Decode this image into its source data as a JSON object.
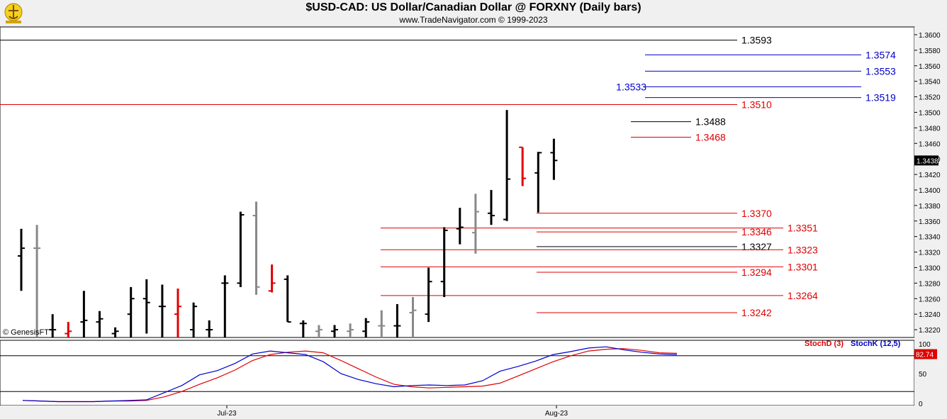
{
  "header": {
    "title": "$USD-CAD:  US Dollar/Canadian Dollar @ FORXNY  (Daily bars)",
    "subtitle": "www.TradeNavigator.com © 1999-2023"
  },
  "watermark": "© GenesisFT",
  "colors": {
    "bull_bar": "#000000",
    "bear_bar": "#e00000",
    "neutral_bar": "#888888",
    "up_bar": "#22cc22",
    "level_black": "#000000",
    "level_red": "#e00000",
    "level_blue": "#0000cc",
    "stoch_d": "#e00000",
    "stoch_k": "#0000cc"
  },
  "chart_data": [
    {
      "type": "ohlc",
      "title": "$USD-CAD:  US Dollar/Canadian Dollar @ FORXNY  (Daily bars)",
      "ylim": [
        1.321,
        1.361
      ],
      "y_ticks": [
        "1.3220",
        "1.3240",
        "1.3260",
        "1.3280",
        "1.3300",
        "1.3320",
        "1.3340",
        "1.3360",
        "1.3380",
        "1.3400",
        "1.3420",
        "1.3440",
        "1.3460",
        "1.3480",
        "1.3500",
        "1.3520",
        "1.3540",
        "1.3560",
        "1.3580",
        "1.3600"
      ],
      "x_labels": [
        "Jul-23",
        "Aug-23"
      ],
      "last_price": "1.3438",
      "bars": [
        {
          "o": 1.3315,
          "h": 1.335,
          "l": 1.327,
          "c": 1.3325,
          "color": "black"
        },
        {
          "o": 1.3325,
          "h": 1.3355,
          "l": 1.32,
          "c": 1.3325,
          "color": "gray"
        },
        {
          "o": 1.322,
          "h": 1.324,
          "l": 1.32,
          "c": 1.322,
          "color": "black"
        },
        {
          "o": 1.3215,
          "h": 1.323,
          "l": 1.32,
          "c": 1.3218,
          "color": "red"
        },
        {
          "o": 1.323,
          "h": 1.327,
          "l": 1.32,
          "c": 1.3232,
          "color": "black"
        },
        {
          "o": 1.323,
          "h": 1.3244,
          "l": 1.32,
          "c": 1.3234,
          "color": "black"
        },
        {
          "o": 1.3215,
          "h": 1.3223,
          "l": 1.32,
          "c": 1.3218,
          "color": "black"
        },
        {
          "o": 1.324,
          "h": 1.3275,
          "l": 1.321,
          "c": 1.326,
          "color": "black"
        },
        {
          "o": 1.326,
          "h": 1.3285,
          "l": 1.3215,
          "c": 1.3255,
          "color": "black"
        },
        {
          "o": 1.325,
          "h": 1.3278,
          "l": 1.321,
          "c": 1.325,
          "color": "black"
        },
        {
          "o": 1.324,
          "h": 1.3273,
          "l": 1.3205,
          "c": 1.325,
          "color": "red"
        },
        {
          "o": 1.322,
          "h": 1.3255,
          "l": 1.321,
          "c": 1.325,
          "color": "black"
        },
        {
          "o": 1.322,
          "h": 1.3232,
          "l": 1.321,
          "c": 1.322,
          "color": "black"
        },
        {
          "o": 1.328,
          "h": 1.329,
          "l": 1.321,
          "c": 1.328,
          "color": "black"
        },
        {
          "o": 1.328,
          "h": 1.3372,
          "l": 1.3275,
          "c": 1.3368,
          "color": "black"
        },
        {
          "o": 1.3367,
          "h": 1.3385,
          "l": 1.3265,
          "c": 1.3275,
          "color": "gray"
        },
        {
          "o": 1.327,
          "h": 1.3304,
          "l": 1.3268,
          "c": 1.328,
          "color": "red"
        },
        {
          "o": 1.3285,
          "h": 1.329,
          "l": 1.323,
          "c": 1.323,
          "color": "black"
        },
        {
          "o": 1.3228,
          "h": 1.3232,
          "l": 1.321,
          "c": 1.3228,
          "color": "black"
        },
        {
          "o": 1.3218,
          "h": 1.3226,
          "l": 1.321,
          "c": 1.322,
          "color": "gray"
        },
        {
          "o": 1.3218,
          "h": 1.3226,
          "l": 1.321,
          "c": 1.322,
          "color": "black"
        },
        {
          "o": 1.3218,
          "h": 1.3228,
          "l": 1.321,
          "c": 1.322,
          "color": "gray"
        },
        {
          "o": 1.3218,
          "h": 1.3235,
          "l": 1.321,
          "c": 1.323,
          "color": "black"
        },
        {
          "o": 1.3225,
          "h": 1.3245,
          "l": 1.321,
          "c": 1.3225,
          "color": "gray"
        },
        {
          "o": 1.3225,
          "h": 1.3253,
          "l": 1.321,
          "c": 1.3225,
          "color": "black"
        },
        {
          "o": 1.3242,
          "h": 1.3262,
          "l": 1.321,
          "c": 1.3245,
          "color": "gray"
        },
        {
          "o": 1.324,
          "h": 1.33,
          "l": 1.323,
          "c": 1.3282,
          "color": "black"
        },
        {
          "o": 1.3282,
          "h": 1.3352,
          "l": 1.3262,
          "c": 1.3348,
          "color": "black"
        },
        {
          "o": 1.335,
          "h": 1.3377,
          "l": 1.333,
          "c": 1.3352,
          "color": "black"
        },
        {
          "o": 1.3345,
          "h": 1.3395,
          "l": 1.3318,
          "c": 1.3372,
          "color": "gray"
        },
        {
          "o": 1.337,
          "h": 1.34,
          "l": 1.3355,
          "c": 1.3367,
          "color": "black"
        },
        {
          "o": 1.3362,
          "h": 1.3503,
          "l": 1.336,
          "c": 1.3414,
          "color": "black"
        },
        {
          "o": 1.3455,
          "h": 1.3455,
          "l": 1.3405,
          "c": 1.3415,
          "color": "red"
        },
        {
          "o": 1.3422,
          "h": 1.3449,
          "l": 1.3371,
          "c": 1.3448,
          "color": "black"
        },
        {
          "o": 1.3448,
          "h": 1.3466,
          "l": 1.3413,
          "c": 1.3438,
          "color": "black"
        }
      ],
      "levels": [
        {
          "value": "1.3593",
          "color": "black",
          "start": "left"
        },
        {
          "value": "1.3574",
          "color": "blue",
          "start": "right-group"
        },
        {
          "value": "1.3553",
          "color": "blue",
          "start": "right-group"
        },
        {
          "value": "1.3533",
          "color": "blue",
          "start": "right-group",
          "label_side": "left"
        },
        {
          "value": "1.3519",
          "color": "blue",
          "start": "right-group"
        },
        {
          "value": "1.3510",
          "color": "red",
          "start": "left"
        },
        {
          "value": "1.3488",
          "color": "black",
          "start": "peak"
        },
        {
          "value": "1.3468",
          "color": "red",
          "start": "peak"
        },
        {
          "value": "1.3370",
          "color": "red",
          "start": "mid"
        },
        {
          "value": "1.3351",
          "color": "red",
          "start": "left-mid"
        },
        {
          "value": "1.3346",
          "color": "red",
          "start": "mid"
        },
        {
          "value": "1.3327",
          "color": "black",
          "start": "mid"
        },
        {
          "value": "1.3323",
          "color": "red",
          "start": "left-mid"
        },
        {
          "value": "1.3301",
          "color": "red",
          "start": "left-mid"
        },
        {
          "value": "1.3294",
          "color": "red",
          "start": "mid"
        },
        {
          "value": "1.3264",
          "color": "red",
          "start": "left-mid"
        },
        {
          "value": "1.3242",
          "color": "red",
          "start": "mid"
        }
      ]
    },
    {
      "type": "line",
      "title": "",
      "ylim": [
        0,
        100
      ],
      "y_ticks": [
        "0",
        "50",
        "100"
      ],
      "reference_lines": [
        20,
        80
      ],
      "last_value": "82.74",
      "series": [
        {
          "name": "StochD (3)",
          "color": "red",
          "values": [
            5,
            4,
            3,
            3,
            3,
            4,
            4,
            5,
            11,
            20,
            32,
            43,
            56,
            72,
            82,
            86,
            88,
            85,
            72,
            58,
            44,
            32,
            28,
            26,
            27,
            28,
            29,
            34,
            46,
            58,
            70,
            80,
            88,
            91,
            92,
            89,
            85,
            84
          ]
        },
        {
          "name": "StochK (12,5)",
          "color": "blue",
          "values": [
            5,
            4,
            3,
            3,
            3,
            4,
            5,
            6,
            18,
            30,
            48,
            55,
            67,
            83,
            88,
            85,
            82,
            70,
            50,
            40,
            33,
            28,
            30,
            31,
            30,
            31,
            38,
            54,
            62,
            71,
            82,
            87,
            93,
            95,
            90,
            86,
            83,
            82
          ]
        }
      ]
    }
  ]
}
